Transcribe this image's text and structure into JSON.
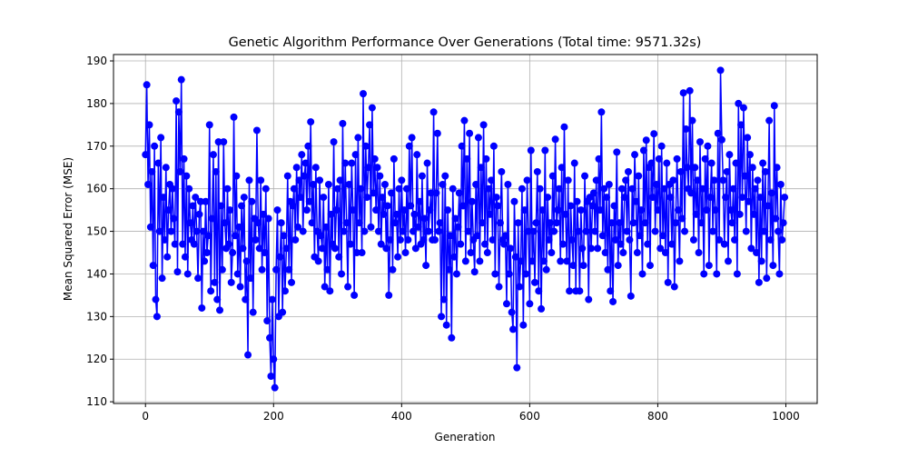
{
  "chart_data": {
    "type": "line",
    "title": "Genetic Algorithm Performance Over Generations (Total time: 9571.32s)",
    "xlabel": "Generation",
    "ylabel": "Mean Squared Error (MSE)",
    "xlim": [
      -49.95,
      1048.95
    ],
    "ylim": [
      109.6,
      191.5
    ],
    "xticks": [
      0,
      200,
      400,
      600,
      800,
      1000
    ],
    "yticks": [
      110,
      120,
      130,
      140,
      150,
      160,
      170,
      180,
      190
    ],
    "grid": true,
    "x": [
      0,
      2,
      4,
      6,
      8,
      10,
      12,
      14,
      16,
      18,
      20,
      22,
      24,
      26,
      28,
      30,
      32,
      34,
      36,
      38,
      40,
      42,
      44,
      46,
      48,
      50,
      52,
      54,
      56,
      58,
      60,
      62,
      64,
      66,
      68,
      70,
      72,
      74,
      76,
      78,
      80,
      82,
      84,
      86,
      88,
      90,
      92,
      94,
      96,
      98,
      100,
      102,
      104,
      106,
      108,
      110,
      112,
      114,
      116,
      118,
      120,
      122,
      124,
      126,
      128,
      130,
      132,
      134,
      136,
      138,
      140,
      142,
      144,
      146,
      148,
      150,
      152,
      154,
      156,
      158,
      160,
      162,
      164,
      166,
      168,
      170,
      172,
      174,
      176,
      178,
      180,
      182,
      184,
      186,
      188,
      190,
      192,
      194,
      196,
      198,
      200,
      202,
      204,
      206,
      208,
      210,
      212,
      214,
      216,
      218,
      220,
      222,
      224,
      226,
      228,
      230,
      232,
      234,
      236,
      238,
      240,
      242,
      244,
      246,
      248,
      250,
      252,
      254,
      256,
      258,
      260,
      262,
      264,
      266,
      268,
      270,
      272,
      274,
      276,
      278,
      280,
      282,
      284,
      286,
      288,
      290,
      292,
      294,
      296,
      298,
      300,
      302,
      304,
      306,
      308,
      310,
      312,
      314,
      316,
      318,
      320,
      322,
      324,
      326,
      328,
      330,
      332,
      334,
      336,
      338,
      340,
      342,
      344,
      346,
      348,
      350,
      352,
      354,
      356,
      358,
      360,
      362,
      364,
      366,
      368,
      370,
      372,
      374,
      376,
      378,
      380,
      382,
      384,
      386,
      388,
      390,
      392,
      394,
      396,
      398,
      400,
      402,
      404,
      406,
      408,
      410,
      412,
      414,
      416,
      418,
      420,
      422,
      424,
      426,
      428,
      430,
      432,
      434,
      436,
      438,
      440,
      442,
      444,
      446,
      448,
      450,
      452,
      454,
      456,
      458,
      460,
      462,
      464,
      466,
      468,
      470,
      472,
      474,
      476,
      478,
      480,
      482,
      484,
      486,
      488,
      490,
      492,
      494,
      496,
      498,
      500,
      502,
      504,
      506,
      508,
      510,
      512,
      514,
      516,
      518,
      520,
      522,
      524,
      526,
      528,
      530,
      532,
      534,
      536,
      538,
      540,
      542,
      544,
      546,
      548,
      550,
      552,
      554,
      556,
      558,
      560,
      562,
      564,
      566,
      568,
      570,
      572,
      574,
      576,
      578,
      580,
      582,
      584,
      586,
      588,
      590,
      592,
      594,
      596,
      598,
      600,
      602,
      604,
      606,
      608,
      610,
      612,
      614,
      616,
      618,
      620,
      622,
      624,
      626,
      628,
      630,
      632,
      634,
      636,
      638,
      640,
      642,
      644,
      646,
      648,
      650,
      652,
      654,
      656,
      658,
      660,
      662,
      664,
      666,
      668,
      670,
      672,
      674,
      676,
      678,
      680,
      682,
      684,
      686,
      688,
      690,
      692,
      694,
      696,
      698,
      700,
      702,
      704,
      706,
      708,
      710,
      712,
      714,
      716,
      718,
      720,
      722,
      724,
      726,
      728,
      730,
      732,
      734,
      736,
      738,
      740,
      742,
      744,
      746,
      748,
      750,
      752,
      754,
      756,
      758,
      760,
      762,
      764,
      766,
      768,
      770,
      772,
      774,
      776,
      778,
      780,
      782,
      784,
      786,
      788,
      790,
      792,
      794,
      796,
      798,
      800,
      802,
      804,
      806,
      808,
      810,
      812,
      814,
      816,
      818,
      820,
      822,
      824,
      826,
      828,
      830,
      832,
      834,
      836,
      838,
      840,
      842,
      844,
      846,
      848,
      850,
      852,
      854,
      856,
      858,
      860,
      862,
      864,
      866,
      868,
      870,
      872,
      874,
      876,
      878,
      880,
      882,
      884,
      886,
      888,
      890,
      892,
      894,
      896,
      898,
      900,
      902,
      904,
      906,
      908,
      910,
      912,
      914,
      916,
      918,
      920,
      922,
      924,
      926,
      928,
      930,
      932,
      934,
      936,
      938,
      940,
      942,
      944,
      946,
      948,
      950,
      952,
      954,
      956,
      958,
      960,
      962,
      964,
      966,
      968,
      970,
      972,
      974,
      976,
      978,
      980,
      982,
      984,
      986,
      988,
      990,
      992,
      994,
      996,
      998
    ],
    "series": [
      {
        "color": "#0000ff",
        "values": [
          168,
          184.4,
          161,
          175,
          151,
          164,
          142,
          170,
          134,
          130,
          166,
          150,
          172,
          139,
          158,
          148,
          165,
          144,
          155,
          161,
          150,
          160,
          153,
          147,
          180.6,
          140.5,
          178,
          164,
          185.6,
          147,
          167,
          144,
          163,
          140,
          160,
          152,
          148,
          156,
          147,
          158,
          150,
          139,
          154,
          157,
          132,
          150,
          143,
          157,
          145,
          149,
          175,
          136,
          153,
          168,
          138,
          164,
          134,
          171,
          131.5,
          156,
          141,
          171,
          152,
          146,
          160,
          147,
          155,
          138,
          145,
          176.8,
          149,
          163,
          140,
          151,
          137,
          156,
          146,
          158,
          134,
          143,
          121,
          162,
          139,
          157,
          131,
          153,
          148,
          173.7,
          152,
          146,
          162,
          141,
          154,
          145,
          160,
          129,
          153,
          125,
          116,
          134,
          120,
          113.3,
          141,
          155,
          130,
          144,
          152,
          131,
          149,
          136,
          146,
          163,
          141,
          157,
          138,
          156,
          160,
          148,
          165,
          151,
          162,
          158,
          168,
          150,
          163,
          166,
          155,
          170,
          157,
          175.7,
          152,
          161,
          144,
          165,
          150,
          143,
          162,
          149,
          146,
          158,
          137,
          151,
          141,
          161,
          136,
          154,
          147,
          171,
          146,
          155,
          160,
          144,
          162,
          140,
          175.3,
          150,
          166,
          152,
          137,
          161,
          147,
          166,
          155,
          135,
          168,
          145,
          172,
          152,
          160,
          145,
          182.3,
          150,
          170,
          158,
          165,
          175,
          151,
          179,
          159,
          167,
          155,
          165,
          150,
          163,
          147,
          158,
          154,
          161,
          146,
          156,
          135,
          148,
          159,
          141,
          167,
          152,
          154,
          144,
          160,
          148,
          162,
          150,
          155,
          145,
          160,
          148,
          170,
          156,
          172,
          150,
          154,
          146,
          168,
          151,
          157,
          147,
          163,
          148,
          153,
          142,
          166,
          150,
          155,
          159,
          148,
          178,
          148,
          159,
          173,
          150,
          152,
          130,
          161,
          134,
          163,
          128,
          155,
          141,
          149,
          125,
          160,
          144,
          153,
          140,
          151,
          159,
          147,
          170,
          156,
          176,
          143,
          167,
          150,
          173,
          145,
          157,
          148,
          140.5,
          161,
          149,
          172,
          143,
          165,
          152,
          175,
          147,
          167,
          145,
          160,
          154,
          162,
          148,
          170,
          140,
          158,
          156,
          137,
          152,
          164,
          148,
          147,
          149,
          133,
          161,
          140,
          146,
          131,
          127,
          157,
          144,
          118,
          152,
          137,
          143,
          160,
          128,
          155,
          140,
          162,
          150,
          133,
          169,
          143,
          150,
          138,
          152,
          164,
          136,
          160,
          131.8,
          155,
          143,
          169,
          141,
          158,
          148,
          152,
          145,
          163,
          150,
          171.6,
          152,
          155,
          160,
          143,
          165,
          147,
          174.5,
          154,
          143,
          162,
          136,
          156,
          148,
          142,
          166,
          136,
          157,
          150,
          136,
          155,
          146,
          142,
          163,
          150,
          157,
          134,
          158,
          146,
          156,
          159,
          150,
          162,
          146,
          167,
          155,
          178,
          149,
          160,
          145,
          158,
          141,
          161,
          136,
          152,
          133.5,
          156,
          148,
          168.6,
          142,
          152,
          147,
          160,
          145,
          158,
          162,
          150,
          164,
          148,
          134.8,
          160,
          152,
          168,
          157,
          145,
          163,
          149,
          155,
          140,
          169,
          152,
          171.4,
          147,
          165,
          142,
          166,
          158,
          172.9,
          150,
          161,
          155,
          167,
          146,
          170,
          149,
          160,
          145,
          166,
          138,
          161,
          158,
          147,
          162,
          137,
          152,
          167,
          155,
          143,
          164,
          153,
          182.5,
          150,
          174,
          165,
          160,
          183,
          159,
          176,
          148,
          165,
          154,
          162,
          145,
          171,
          152,
          160,
          140,
          167,
          155,
          170,
          142,
          158,
          166,
          150,
          162,
          155,
          140,
          173,
          148,
          187.8,
          171.5,
          162,
          147,
          158,
          164,
          143,
          168,
          155,
          152,
          160,
          148,
          166,
          140,
          180,
          154,
          175,
          158,
          179,
          163,
          150,
          172,
          157,
          168,
          146,
          165,
          154,
          160,
          145,
          162,
          138,
          158,
          143,
          166,
          150,
          164,
          139,
          156,
          176,
          148,
          159,
          142,
          179.5,
          153,
          165,
          150,
          140,
          161,
          148,
          152,
          158
        ]
      }
    ]
  }
}
